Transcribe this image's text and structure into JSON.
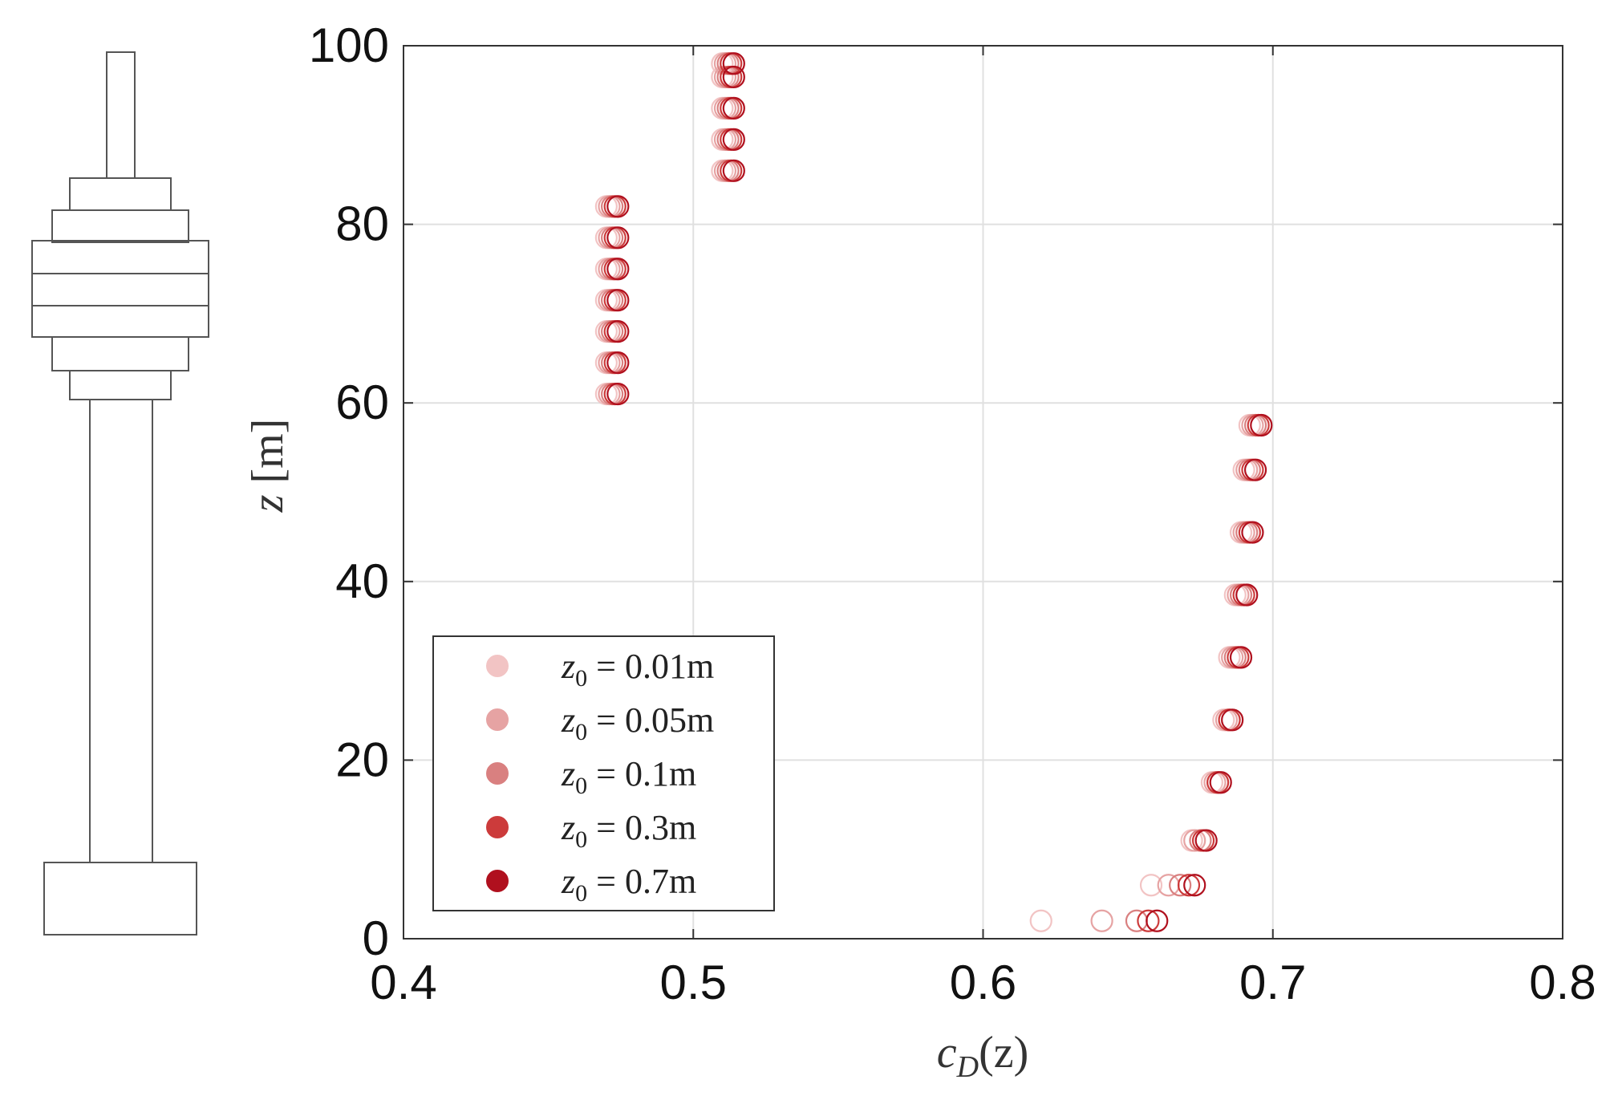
{
  "chart_data": {
    "type": "scatter",
    "xlabel": "c_D(z)",
    "ylabel": "z [m]",
    "xlim": [
      0.4,
      0.8
    ],
    "ylim": [
      0,
      100
    ],
    "xticks": [
      0.4,
      0.5,
      0.6,
      0.7,
      0.8
    ],
    "xtick_labels": [
      "0.4",
      "0.5",
      "0.6",
      "0.7",
      "0.8"
    ],
    "yticks": [
      0,
      20,
      40,
      60,
      80,
      100
    ],
    "ytick_labels": [
      "0",
      "20",
      "40",
      "60",
      "80",
      "100"
    ],
    "grid": true,
    "legend_position": "bottom-left",
    "series": [
      {
        "name": "z0 = 0.01m",
        "color": "#f2c4c4",
        "points": [
          [
            0.51,
            98
          ],
          [
            0.51,
            96.5
          ],
          [
            0.51,
            93
          ],
          [
            0.51,
            89.5
          ],
          [
            0.51,
            86
          ],
          [
            0.47,
            82
          ],
          [
            0.47,
            78.5
          ],
          [
            0.47,
            75
          ],
          [
            0.47,
            71.5
          ],
          [
            0.47,
            68
          ],
          [
            0.47,
            64.5
          ],
          [
            0.47,
            61
          ],
          [
            0.692,
            57.5
          ],
          [
            0.69,
            52.5
          ],
          [
            0.689,
            45.5
          ],
          [
            0.687,
            38.5
          ],
          [
            0.685,
            31.5
          ],
          [
            0.683,
            24.5
          ],
          [
            0.679,
            17.5
          ],
          [
            0.672,
            11
          ],
          [
            0.658,
            6
          ],
          [
            0.62,
            2
          ]
        ]
      },
      {
        "name": "z0 = 0.05m",
        "color": "#e6a3a3",
        "points": [
          [
            0.511,
            98
          ],
          [
            0.511,
            96.5
          ],
          [
            0.511,
            93
          ],
          [
            0.511,
            89.5
          ],
          [
            0.511,
            86
          ],
          [
            0.471,
            82
          ],
          [
            0.471,
            78.5
          ],
          [
            0.471,
            75
          ],
          [
            0.471,
            71.5
          ],
          [
            0.471,
            68
          ],
          [
            0.471,
            64.5
          ],
          [
            0.471,
            61
          ],
          [
            0.693,
            57.5
          ],
          [
            0.691,
            52.5
          ],
          [
            0.69,
            45.5
          ],
          [
            0.688,
            38.5
          ],
          [
            0.686,
            31.5
          ],
          [
            0.684,
            24.5
          ],
          [
            0.68,
            17.5
          ],
          [
            0.673,
            11
          ],
          [
            0.664,
            6
          ],
          [
            0.641,
            2
          ]
        ]
      },
      {
        "name": "z0 = 0.1m",
        "color": "#d98080",
        "points": [
          [
            0.512,
            98
          ],
          [
            0.512,
            96.5
          ],
          [
            0.512,
            93
          ],
          [
            0.512,
            89.5
          ],
          [
            0.512,
            86
          ],
          [
            0.472,
            82
          ],
          [
            0.472,
            78.5
          ],
          [
            0.472,
            75
          ],
          [
            0.472,
            71.5
          ],
          [
            0.472,
            68
          ],
          [
            0.472,
            64.5
          ],
          [
            0.472,
            61
          ],
          [
            0.694,
            57.5
          ],
          [
            0.692,
            52.5
          ],
          [
            0.691,
            45.5
          ],
          [
            0.689,
            38.5
          ],
          [
            0.687,
            31.5
          ],
          [
            0.685,
            24.5
          ],
          [
            0.681,
            17.5
          ],
          [
            0.675,
            11
          ],
          [
            0.668,
            6
          ],
          [
            0.653,
            2
          ]
        ]
      },
      {
        "name": "z0 = 0.3m",
        "color": "#cc3b3b",
        "points": [
          [
            0.513,
            98
          ],
          [
            0.513,
            96.5
          ],
          [
            0.513,
            93
          ],
          [
            0.513,
            89.5
          ],
          [
            0.513,
            86
          ],
          [
            0.473,
            82
          ],
          [
            0.473,
            78.5
          ],
          [
            0.473,
            75
          ],
          [
            0.473,
            71.5
          ],
          [
            0.473,
            68
          ],
          [
            0.473,
            64.5
          ],
          [
            0.473,
            61
          ],
          [
            0.695,
            57.5
          ],
          [
            0.693,
            52.5
          ],
          [
            0.692,
            45.5
          ],
          [
            0.69,
            38.5
          ],
          [
            0.688,
            31.5
          ],
          [
            0.685,
            24.5
          ],
          [
            0.681,
            17.5
          ],
          [
            0.676,
            11
          ],
          [
            0.671,
            6
          ],
          [
            0.657,
            2
          ]
        ]
      },
      {
        "name": "z0 = 0.7m",
        "color": "#b0101e",
        "points": [
          [
            0.514,
            98
          ],
          [
            0.514,
            96.5
          ],
          [
            0.514,
            93
          ],
          [
            0.514,
            89.5
          ],
          [
            0.514,
            86
          ],
          [
            0.474,
            82
          ],
          [
            0.474,
            78.5
          ],
          [
            0.474,
            75
          ],
          [
            0.474,
            71.5
          ],
          [
            0.474,
            68
          ],
          [
            0.474,
            64.5
          ],
          [
            0.474,
            61
          ],
          [
            0.696,
            57.5
          ],
          [
            0.694,
            52.5
          ],
          [
            0.693,
            45.5
          ],
          [
            0.691,
            38.5
          ],
          [
            0.689,
            31.5
          ],
          [
            0.686,
            24.5
          ],
          [
            0.682,
            17.5
          ],
          [
            0.677,
            11
          ],
          [
            0.673,
            6
          ],
          [
            0.66,
            2
          ]
        ]
      }
    ]
  },
  "legend": {
    "items": [
      {
        "prefix": "z",
        "sub": "0",
        "text": " = 0.01m",
        "color": "#f2c4c4"
      },
      {
        "prefix": "z",
        "sub": "0",
        "text": " = 0.05m",
        "color": "#e6a3a3"
      },
      {
        "prefix": "z",
        "sub": "0",
        "text": " = 0.1m",
        "color": "#d98080"
      },
      {
        "prefix": "z",
        "sub": "0",
        "text": " = 0.3m",
        "color": "#cc3b3b"
      },
      {
        "prefix": "z",
        "sub": "0",
        "text": " = 0.7m",
        "color": "#b0101e"
      }
    ]
  },
  "axis_text": {
    "x_main": "c",
    "x_sub": "D",
    "x_rest": "(z)",
    "y_main": "z",
    "y_rest": " [m]"
  }
}
